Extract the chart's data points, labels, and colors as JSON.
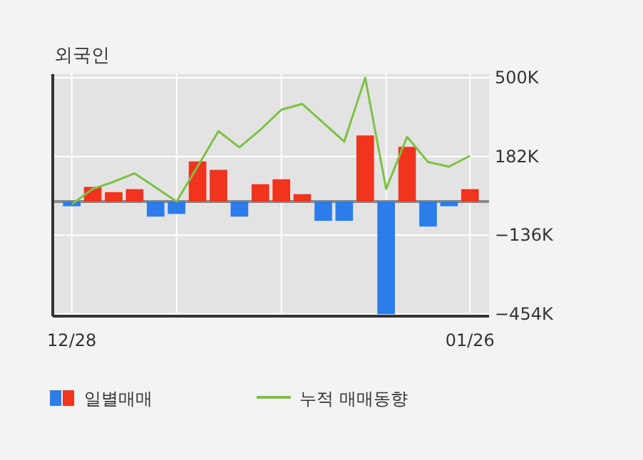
{
  "chart_data": {
    "type": "bar",
    "title": "외국인",
    "categories": [
      "12/28",
      null,
      null,
      null,
      null,
      null,
      null,
      null,
      null,
      null,
      null,
      null,
      null,
      null,
      null,
      null,
      null,
      null,
      null,
      "01/26"
    ],
    "series": [
      {
        "name": "일별매매",
        "colors": [
          "#2b7de9",
          "#f0341e",
          "#f0341e",
          "#f0341e",
          "#2b7de9",
          "#2b7de9",
          "#f0341e",
          "#f0341e",
          "#2b7de9",
          "#f0341e",
          "#f0341e",
          "#f0341e",
          "#2b7de9",
          "#2b7de9",
          "#f0341e",
          "#2b7de9",
          "#f0341e",
          "#2b7de9",
          "#2b7de9",
          "#f0341e"
        ],
        "values": [
          -19,
          59,
          38,
          50,
          -61,
          -50,
          162,
          128,
          -61,
          70,
          90,
          30,
          -78,
          -78,
          267,
          -455,
          221,
          -101,
          -19,
          50
        ]
      },
      {
        "name": "누적 매매동향",
        "type": "line",
        "color": "#7cc242",
        "values": [
          -11,
          51,
          80,
          114,
          57,
          0,
          141,
          284,
          219,
          290,
          371,
          394,
          318,
          242,
          500,
          51,
          261,
          160,
          141,
          185
        ]
      }
    ],
    "ylim": [
      -463,
      515
    ],
    "yticks": [
      {
        "value": 500,
        "label": "500K"
      },
      {
        "value": 182,
        "label": "182K"
      },
      {
        "value": -136,
        "label": "−136K"
      },
      {
        "value": -454,
        "label": "−454K"
      }
    ],
    "grid": true,
    "legend": "bottom"
  }
}
